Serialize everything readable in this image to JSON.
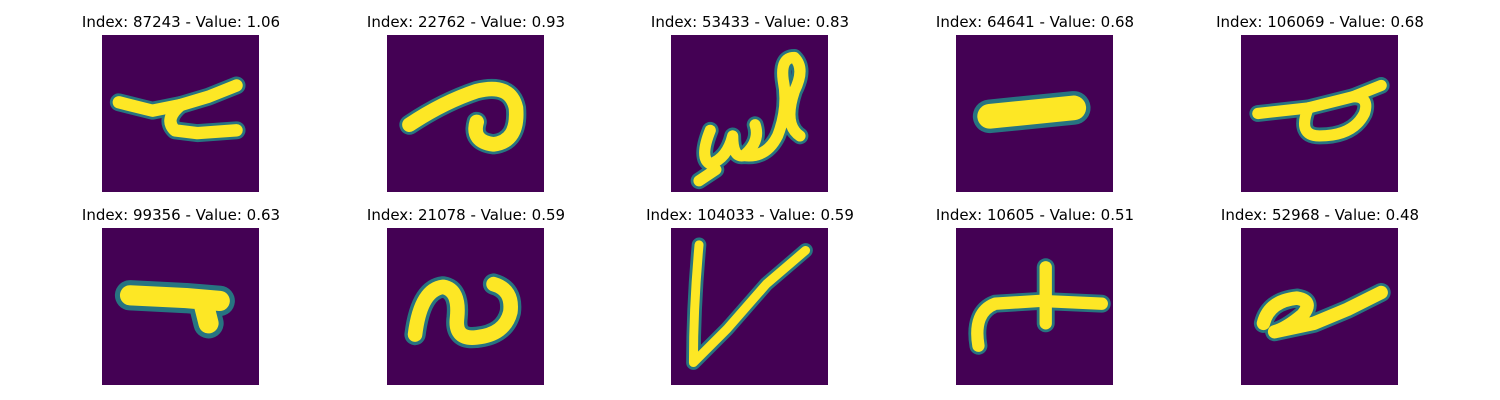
{
  "figure": {
    "panels": [
      {
        "title": "Index: 87243 - Value: 1.06",
        "glyph": "stroke-hook-with-bar"
      },
      {
        "title": "Index: 22762 - Value: 0.93",
        "glyph": "loop-with-tail"
      },
      {
        "title": "Index: 53433 - Value: 0.83",
        "glyph": "cursive-w"
      },
      {
        "title": "Index: 64641 - Value: 0.68",
        "glyph": "dash-blob"
      },
      {
        "title": "Index: 106069 - Value: 0.68",
        "glyph": "bar-with-loop"
      },
      {
        "title": "Index: 99356 - Value: 0.63",
        "glyph": "blurred-blob"
      },
      {
        "title": "Index: 21078 - Value: 0.59",
        "glyph": "curvy-s"
      },
      {
        "title": "Index: 104033 - Value: 0.59",
        "glyph": "letter-v"
      },
      {
        "title": "Index: 10605 - Value: 0.51",
        "glyph": "hook-with-plus"
      },
      {
        "title": "Index: 52968 - Value: 0.48",
        "glyph": "slanted-loop"
      }
    ],
    "colors": {
      "background": "#440154",
      "stroke": "#fde725",
      "edge": "#21918c"
    }
  }
}
